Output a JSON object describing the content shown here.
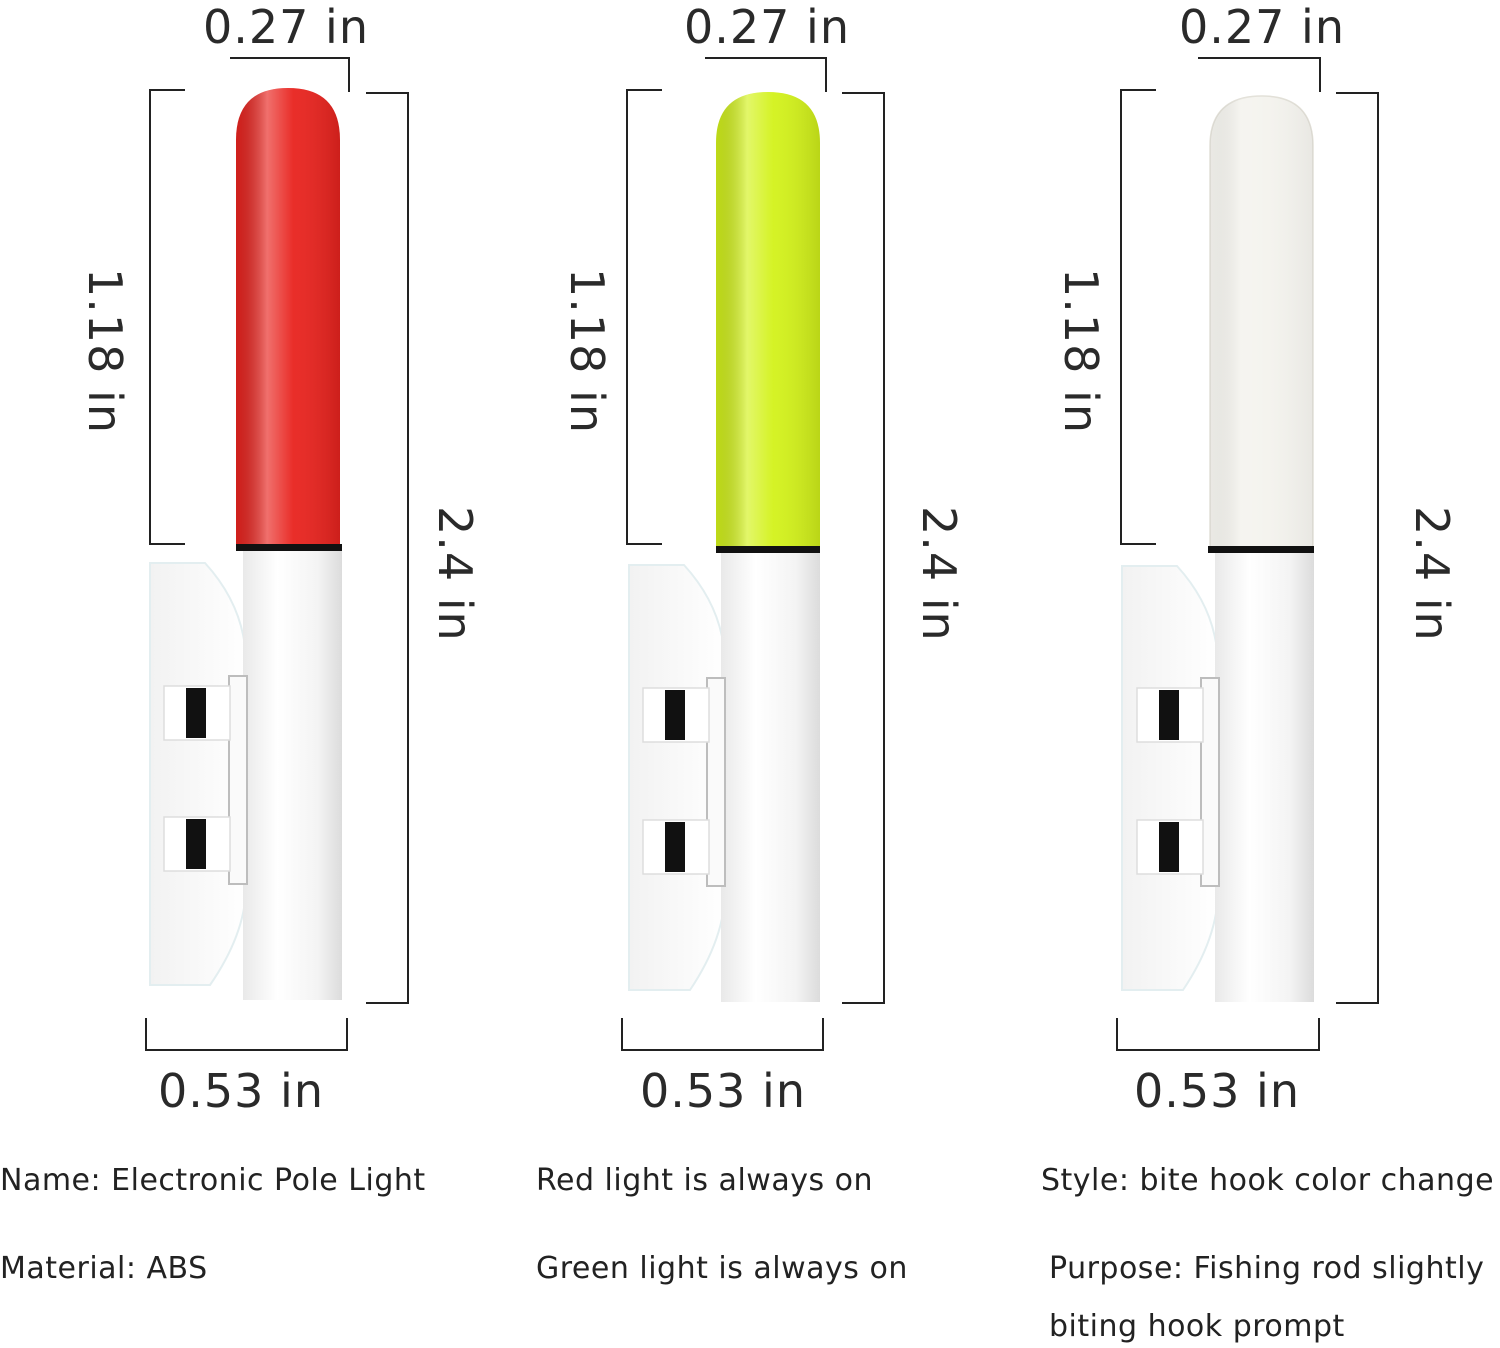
{
  "products": [
    {
      "color_name": "red",
      "tip_color": "#e8231e",
      "dims": {
        "diameter": "0.27 in",
        "tip_length": "1.18 in",
        "total_length": "2.4 in",
        "clip_width": "0.53 in"
      }
    },
    {
      "color_name": "green",
      "tip_color": "#d3f21a",
      "dims": {
        "diameter": "0.27 in",
        "tip_length": "1.18 in",
        "total_length": "2.4 in",
        "clip_width": "0.53 in"
      }
    },
    {
      "color_name": "white",
      "tip_color": "#f4f3ee",
      "dims": {
        "diameter": "0.27 in",
        "tip_length": "1.18 in",
        "total_length": "2.4 in",
        "clip_width": "0.53 in"
      }
    }
  ],
  "captions": {
    "name": "Name: Electronic Pole Light",
    "material": "Material: ABS",
    "red_light": "Red light is always on",
    "green_light": "Green light is always on",
    "style": "Style: bite hook color change",
    "purpose_line1": "Purpose: Fishing rod slightly",
    "purpose_line2": "biting hook prompt"
  }
}
